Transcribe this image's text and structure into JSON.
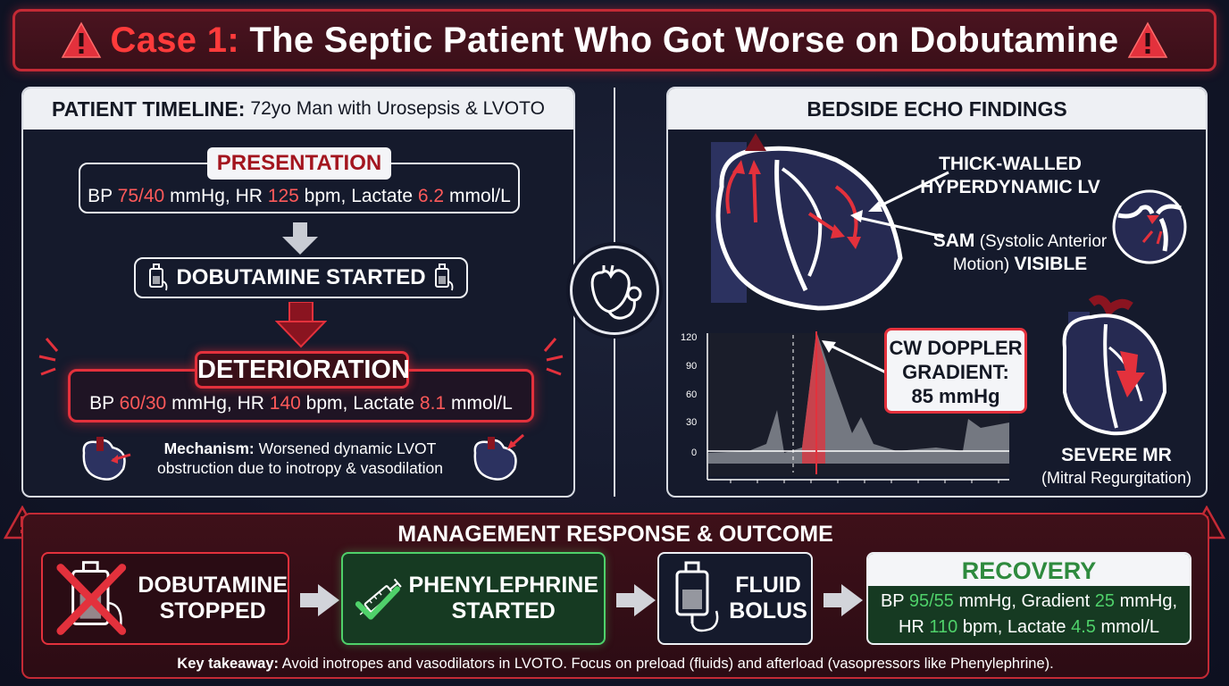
{
  "header": {
    "case_label": "Case 1:",
    "title": "The Septic Patient Who Got Worse on Dobutamine"
  },
  "timeline": {
    "heading_bold": "PATIENT TIMELINE:",
    "heading_rest": "72yo Man with Urosepsis & LVOTO",
    "presentation": {
      "label": "PRESENTATION",
      "bp_label": "BP",
      "bp_value": "75/40",
      "bp_unit": "mmHg,",
      "hr_label": "HR",
      "hr_value": "125",
      "hr_unit": "bpm,",
      "lactate_label": "Lactate",
      "lactate_value": "6.2",
      "lactate_unit": "mmol/L"
    },
    "dobutamine": {
      "label": "DOBUTAMINE STARTED"
    },
    "deterioration": {
      "label": "DETERIORATION",
      "bp_label": "BP",
      "bp_value": "60/30",
      "bp_unit": "mmHg,",
      "hr_label": "HR",
      "hr_value": "140",
      "hr_unit": "bpm,",
      "lactate_label": "Lactate",
      "lactate_value": "8.1",
      "lactate_unit": "mmol/L"
    },
    "mechanism": {
      "label": "Mechanism:",
      "line1_rest": "Worsened dynamic LVOT",
      "line2": "obstruction due to inotropy & vasodilation"
    }
  },
  "echo": {
    "heading": "BEDSIDE ECHO FINDINGS",
    "lv_line1": "THICK-WALLED",
    "lv_line2": "HYPERDYNAMIC LV",
    "sam_bold": "SAM",
    "sam_rest1": "(Systolic Anterior",
    "sam_rest2": "Motion)",
    "sam_visible": "VISIBLE",
    "doppler": {
      "line1": "CW DOPPLER",
      "line2": "GRADIENT:",
      "line3": "85 mmHg"
    },
    "axis_ticks": [
      "120",
      "90",
      "60",
      "30",
      "0"
    ],
    "mr_line1": "SEVERE MR",
    "mr_line2": "(Mitral Regurgitation)"
  },
  "management": {
    "title": "MANAGEMENT RESPONSE & OUTCOME",
    "step1_line1": "DOBUTAMINE",
    "step1_line2": "STOPPED",
    "step2_line1": "PHENYLEPHRINE",
    "step2_line2": "STARTED",
    "step3_line1": "FLUID",
    "step3_line2": "BOLUS",
    "recovery": {
      "label": "RECOVERY",
      "bp_label": "BP",
      "bp_value": "95/55",
      "bp_unit": "mmHg,",
      "grad_label": "Gradient",
      "grad_value": "25",
      "grad_unit": "mmHg,",
      "hr_label": "HR",
      "hr_value": "110",
      "hr_unit": "bpm,",
      "lactate_label": "Lactate",
      "lactate_value": "4.5",
      "lactate_unit": "mmol/L"
    },
    "takeaway_label": "Key takeaway:",
    "takeaway_text": "Avoid inotropes and vasodilators in LVOTO. Focus on preload (fluids) and afterload (vasopressors like Phenylephrine)."
  },
  "colors": {
    "alert_red": "#e3313c",
    "value_red": "#ff5a5a",
    "value_green": "#4fd16a",
    "panel_bg": "#151a2c"
  }
}
